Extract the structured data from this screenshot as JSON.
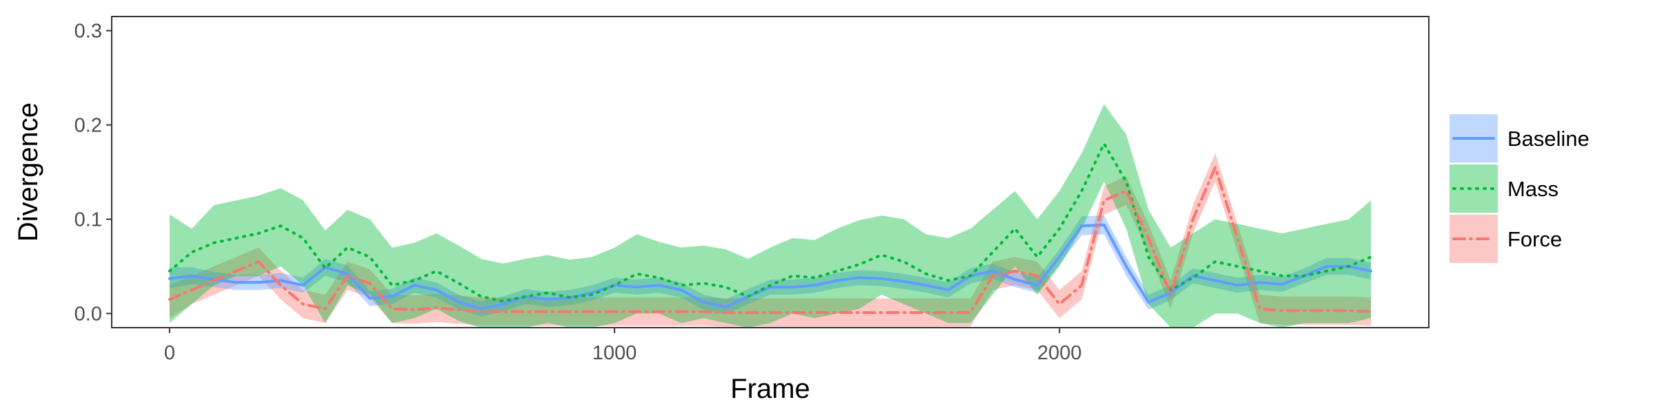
{
  "chart_data": {
    "type": "line",
    "xlabel": "Frame",
    "ylabel": "Divergence",
    "xlim": [
      -130,
      2830
    ],
    "ylim": [
      -0.015,
      0.315
    ],
    "xticks": [
      0,
      1000,
      2000
    ],
    "xtick_labels": [
      "0",
      "1000",
      "2000"
    ],
    "yticks": [
      0.0,
      0.1,
      0.2,
      0.3
    ],
    "ytick_labels": [
      "0.0",
      "0.1",
      "0.2",
      "0.3"
    ],
    "grid": false,
    "legend_position": "right",
    "x": [
      0,
      50,
      100,
      150,
      200,
      250,
      300,
      350,
      400,
      450,
      500,
      550,
      600,
      650,
      700,
      750,
      800,
      850,
      900,
      950,
      1000,
      1050,
      1100,
      1150,
      1200,
      1250,
      1300,
      1350,
      1400,
      1450,
      1500,
      1550,
      1600,
      1650,
      1700,
      1750,
      1800,
      1850,
      1900,
      1950,
      2000,
      2050,
      2100,
      2150,
      2200,
      2250,
      2300,
      2350,
      2400,
      2450,
      2500,
      2550,
      2600,
      2650,
      2700
    ],
    "series": [
      {
        "name": "Baseline",
        "color": "#619CFF",
        "line_style": "solid",
        "y": [
          0.037,
          0.04,
          0.036,
          0.033,
          0.033,
          0.035,
          0.03,
          0.049,
          0.042,
          0.016,
          0.018,
          0.03,
          0.025,
          0.012,
          0.005,
          0.01,
          0.018,
          0.015,
          0.017,
          0.022,
          0.03,
          0.028,
          0.03,
          0.025,
          0.012,
          0.007,
          0.018,
          0.028,
          0.028,
          0.03,
          0.035,
          0.038,
          0.037,
          0.034,
          0.03,
          0.025,
          0.04,
          0.045,
          0.036,
          0.03,
          0.06,
          0.093,
          0.094,
          0.05,
          0.012,
          0.022,
          0.04,
          0.035,
          0.03,
          0.033,
          0.031,
          0.04,
          0.05,
          0.05,
          0.045
        ],
        "lower": [
          0.027,
          0.031,
          0.028,
          0.025,
          0.025,
          0.027,
          0.022,
          0.04,
          0.033,
          0.008,
          0.01,
          0.022,
          0.017,
          0.004,
          -0.003,
          0.002,
          0.01,
          0.007,
          0.009,
          0.014,
          0.022,
          0.02,
          0.022,
          0.017,
          0.004,
          -0.001,
          0.01,
          0.02,
          0.02,
          0.022,
          0.027,
          0.03,
          0.029,
          0.026,
          0.022,
          0.017,
          0.032,
          0.037,
          0.028,
          0.022,
          0.052,
          0.083,
          0.084,
          0.04,
          0.004,
          0.014,
          0.032,
          0.027,
          0.022,
          0.025,
          0.023,
          0.032,
          0.041,
          0.041,
          0.036
        ],
        "upper": [
          0.049,
          0.049,
          0.044,
          0.041,
          0.041,
          0.043,
          0.038,
          0.058,
          0.051,
          0.024,
          0.026,
          0.038,
          0.033,
          0.02,
          0.013,
          0.018,
          0.026,
          0.023,
          0.025,
          0.03,
          0.038,
          0.036,
          0.038,
          0.033,
          0.02,
          0.015,
          0.026,
          0.036,
          0.036,
          0.038,
          0.043,
          0.046,
          0.045,
          0.042,
          0.038,
          0.033,
          0.048,
          0.053,
          0.044,
          0.038,
          0.068,
          0.103,
          0.104,
          0.06,
          0.02,
          0.03,
          0.048,
          0.043,
          0.038,
          0.041,
          0.039,
          0.048,
          0.059,
          0.059,
          0.054
        ]
      },
      {
        "name": "Mass",
        "color": "#00BA38",
        "line_style": "dotted",
        "y": [
          0.045,
          0.065,
          0.075,
          0.08,
          0.085,
          0.093,
          0.08,
          0.048,
          0.07,
          0.06,
          0.03,
          0.035,
          0.045,
          0.032,
          0.018,
          0.013,
          0.018,
          0.022,
          0.017,
          0.02,
          0.03,
          0.042,
          0.038,
          0.03,
          0.032,
          0.028,
          0.018,
          0.03,
          0.04,
          0.038,
          0.045,
          0.052,
          0.062,
          0.055,
          0.042,
          0.035,
          0.04,
          0.065,
          0.09,
          0.06,
          0.09,
          0.13,
          0.18,
          0.14,
          0.06,
          0.025,
          0.038,
          0.055,
          0.05,
          0.045,
          0.04,
          0.04,
          0.045,
          0.05,
          0.06
        ],
        "lower": [
          -0.01,
          0.01,
          0.03,
          0.04,
          0.04,
          0.05,
          0.03,
          -0.01,
          0.03,
          0.02,
          -0.01,
          -0.005,
          0.005,
          -0.008,
          -0.02,
          -0.02,
          -0.015,
          -0.01,
          -0.02,
          -0.02,
          -0.01,
          0.0,
          0.0,
          -0.01,
          -0.005,
          -0.01,
          -0.02,
          -0.01,
          0.0,
          -0.005,
          0.0,
          0.005,
          0.02,
          0.01,
          0.0,
          -0.01,
          -0.01,
          0.02,
          0.05,
          0.02,
          0.05,
          0.09,
          0.14,
          0.09,
          0.01,
          -0.02,
          -0.02,
          0.0,
          0.0,
          -0.01,
          -0.015,
          -0.01,
          -0.01,
          -0.01,
          -0.005
        ],
        "upper": [
          0.105,
          0.09,
          0.115,
          0.12,
          0.125,
          0.133,
          0.12,
          0.088,
          0.11,
          0.1,
          0.07,
          0.075,
          0.085,
          0.072,
          0.058,
          0.053,
          0.058,
          0.062,
          0.057,
          0.06,
          0.07,
          0.084,
          0.076,
          0.07,
          0.072,
          0.068,
          0.058,
          0.07,
          0.08,
          0.078,
          0.09,
          0.099,
          0.104,
          0.1,
          0.084,
          0.08,
          0.09,
          0.11,
          0.13,
          0.1,
          0.13,
          0.17,
          0.222,
          0.19,
          0.11,
          0.07,
          0.085,
          0.1,
          0.095,
          0.09,
          0.085,
          0.09,
          0.095,
          0.1,
          0.12
        ]
      },
      {
        "name": "Force",
        "color": "#F8766D",
        "line_style": "dashdot",
        "y": [
          0.015,
          0.025,
          0.035,
          0.045,
          0.055,
          0.03,
          0.01,
          0.005,
          0.04,
          0.032,
          0.005,
          0.004,
          0.006,
          0.004,
          0.002,
          0.002,
          0.002,
          0.002,
          0.002,
          0.002,
          0.002,
          0.002,
          0.002,
          0.002,
          0.002,
          0.001,
          0.001,
          0.001,
          0.001,
          0.001,
          0.001,
          0.001,
          0.001,
          0.001,
          0.001,
          0.001,
          0.001,
          0.04,
          0.045,
          0.04,
          0.01,
          0.03,
          0.12,
          0.13,
          0.08,
          0.02,
          0.1,
          0.155,
          0.08,
          0.005,
          0.003,
          0.003,
          0.003,
          0.003,
          0.002
        ],
        "lower": [
          -0.005,
          0.01,
          0.02,
          0.03,
          0.04,
          0.015,
          -0.005,
          -0.01,
          0.025,
          0.017,
          -0.01,
          -0.011,
          -0.009,
          -0.011,
          -0.013,
          -0.013,
          -0.013,
          -0.013,
          -0.013,
          -0.013,
          -0.013,
          -0.013,
          -0.013,
          -0.013,
          -0.013,
          -0.014,
          -0.014,
          -0.014,
          -0.014,
          -0.014,
          -0.014,
          -0.014,
          -0.014,
          -0.014,
          -0.014,
          -0.014,
          -0.014,
          0.025,
          0.03,
          0.025,
          -0.005,
          0.015,
          0.105,
          0.115,
          0.065,
          0.005,
          0.085,
          0.14,
          0.065,
          -0.01,
          -0.012,
          -0.012,
          -0.012,
          -0.012,
          -0.013
        ],
        "upper": [
          0.03,
          0.04,
          0.05,
          0.06,
          0.07,
          0.045,
          0.025,
          0.02,
          0.055,
          0.047,
          0.02,
          0.019,
          0.021,
          0.019,
          0.017,
          0.017,
          0.017,
          0.017,
          0.017,
          0.017,
          0.017,
          0.017,
          0.017,
          0.017,
          0.017,
          0.016,
          0.016,
          0.016,
          0.016,
          0.016,
          0.016,
          0.016,
          0.016,
          0.016,
          0.016,
          0.016,
          0.016,
          0.055,
          0.06,
          0.055,
          0.025,
          0.045,
          0.135,
          0.145,
          0.095,
          0.035,
          0.115,
          0.17,
          0.095,
          0.02,
          0.018,
          0.018,
          0.018,
          0.018,
          0.017
        ]
      }
    ]
  }
}
